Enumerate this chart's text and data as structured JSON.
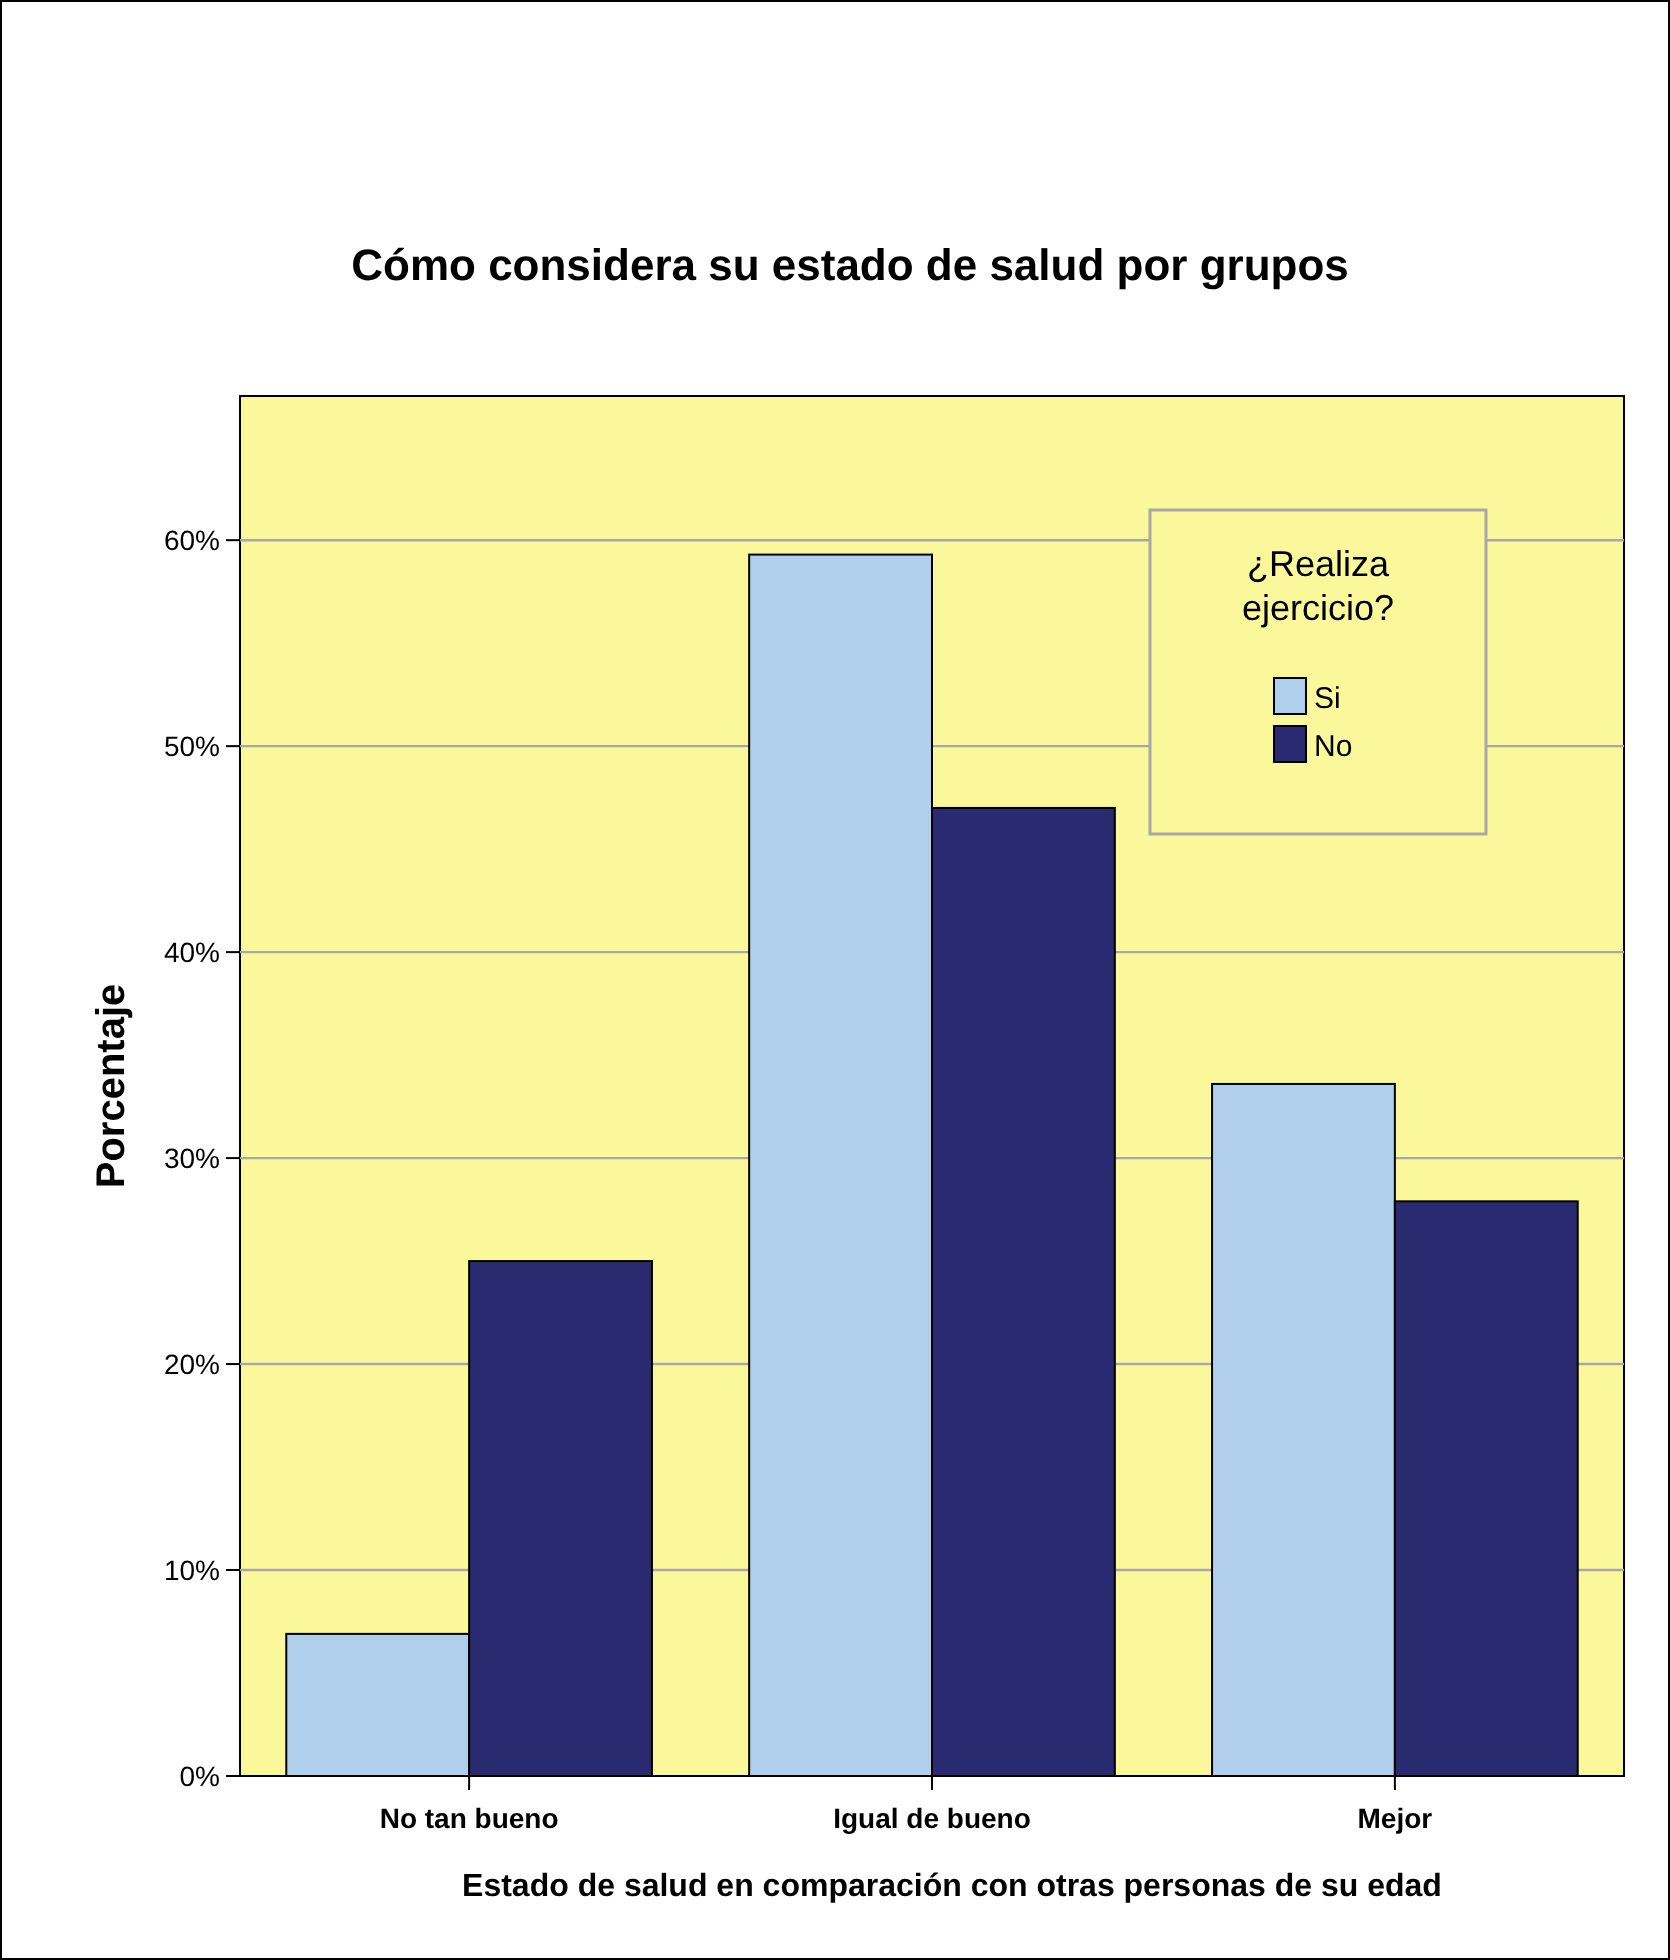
{
  "chart_data": {
    "type": "bar",
    "title": "Cómo considera su estado de salud por grupos",
    "xlabel": "Estado de salud en comparación con otras personas de su edad",
    "ylabel": "Porcentaje",
    "legend_title": "¿Realiza ejercicio?",
    "categories": [
      "No tan bueno",
      "Igual de bueno",
      "Mejor"
    ],
    "series": [
      {
        "name": "Si",
        "color": "#afcfec",
        "values": [
          6.9,
          59.3,
          33.6
        ]
      },
      {
        "name": "No",
        "color": "#292a6f",
        "values": [
          25,
          47,
          27.9
        ]
      }
    ],
    "ylim": [
      0,
      67
    ],
    "yticks": [
      {
        "value": 0,
        "label": "0%"
      },
      {
        "value": 10,
        "label": "10%"
      },
      {
        "value": 20,
        "label": "20%"
      },
      {
        "value": 30,
        "label": "30%"
      },
      {
        "value": 40,
        "label": "40%"
      },
      {
        "value": 50,
        "label": "50%"
      },
      {
        "value": 60,
        "label": "60%"
      }
    ],
    "grid": "y",
    "legend": "top right"
  }
}
